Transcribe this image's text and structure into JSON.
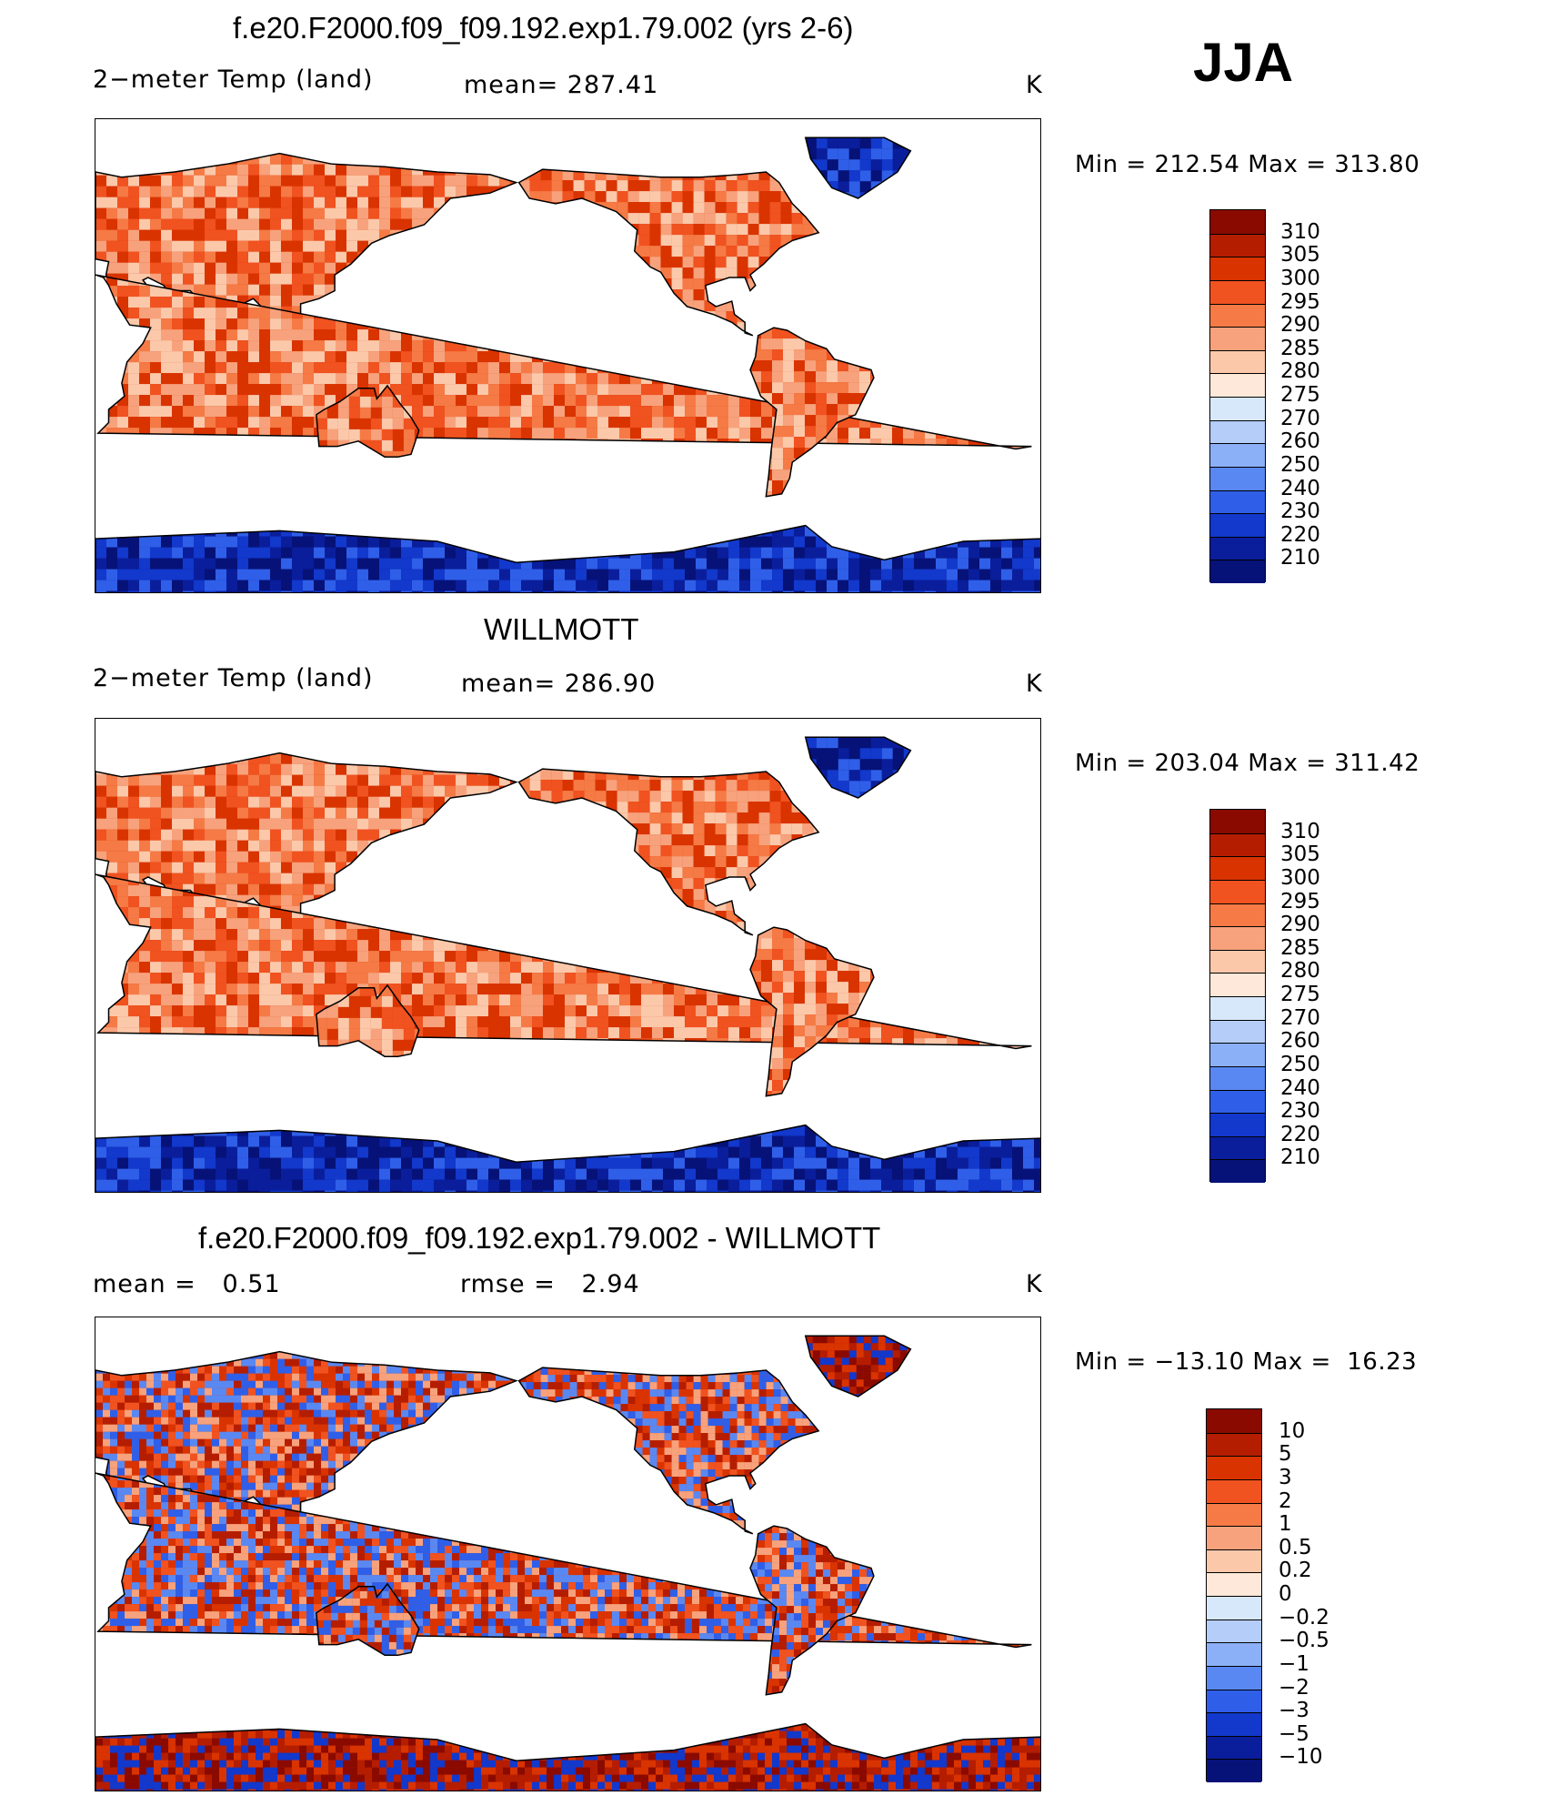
{
  "season": "JJA",
  "panels": [
    {
      "title": "f.e20.F2000.f09_f09.192.exp1.79.002 (yrs 2-6)",
      "left_text": "2−meter Temp (land)",
      "mid_text": "mean= 287.41",
      "units": "K",
      "minmax": "Min = 212.54 Max = 313.80",
      "colorbar": {
        "labels": [
          "310",
          "305",
          "300",
          "295",
          "290",
          "285",
          "280",
          "275",
          "270",
          "260",
          "250",
          "240",
          "230",
          "220",
          "210"
        ],
        "colors": [
          "#8a0a00",
          "#b51d00",
          "#d93300",
          "#f05220",
          "#f57a45",
          "#f7a27c",
          "#fbc8aa",
          "#fde8da",
          "#d8e8fb",
          "#b4cdf9",
          "#8cb0f7",
          "#5a88f2",
          "#2f5fe8",
          "#1238cc",
          "#0a1e9c",
          "#061278"
        ]
      },
      "land_palette": [
        "#d93300",
        "#f05220",
        "#f57a45",
        "#f7a27c",
        "#fbc8aa"
      ],
      "ice_palette": [
        "#061278",
        "#0a1e9c",
        "#1238cc",
        "#2f5fe8"
      ]
    },
    {
      "title": "WILLMOTT",
      "left_text": "2−meter Temp (land)",
      "mid_text": "mean= 286.90",
      "units": "K",
      "minmax": "Min = 203.04 Max = 311.42",
      "colorbar": {
        "labels": [
          "310",
          "305",
          "300",
          "295",
          "290",
          "285",
          "280",
          "275",
          "270",
          "260",
          "250",
          "240",
          "230",
          "220",
          "210"
        ],
        "colors": [
          "#8a0a00",
          "#b51d00",
          "#d93300",
          "#f05220",
          "#f57a45",
          "#f7a27c",
          "#fbc8aa",
          "#fde8da",
          "#d8e8fb",
          "#b4cdf9",
          "#8cb0f7",
          "#5a88f2",
          "#2f5fe8",
          "#1238cc",
          "#0a1e9c",
          "#061278"
        ]
      },
      "land_palette": [
        "#d93300",
        "#f05220",
        "#f57a45",
        "#f7a27c",
        "#fbc8aa"
      ],
      "ice_palette": [
        "#061278",
        "#0a1e9c",
        "#1238cc",
        "#2f5fe8"
      ]
    },
    {
      "title": "f.e20.F2000.f09_f09.192.exp1.79.002 - WILLMOTT",
      "left_text": "mean =   0.51",
      "mid_text": "rmse =   2.94",
      "units": "K",
      "minmax": "Min = −13.10 Max =  16.23",
      "colorbar": {
        "labels": [
          "10",
          "5",
          "3",
          "2",
          "1",
          "0.5",
          "0.2",
          "0",
          "−0.2",
          "−0.5",
          "−1",
          "−2",
          "−3",
          "−5",
          "−10"
        ],
        "colors": [
          "#8a0a00",
          "#b51d00",
          "#d93300",
          "#f05220",
          "#f57a45",
          "#f7a27c",
          "#fbc8aa",
          "#fde8da",
          "#d8e8fb",
          "#b4cdf9",
          "#8cb0f7",
          "#5a88f2",
          "#2f5fe8",
          "#1238cc",
          "#0a1e9c",
          "#061278"
        ]
      },
      "land_palette": [
        "#d93300",
        "#f05220",
        "#2f5fe8",
        "#5a88f2",
        "#f7a27c",
        "#b51d00"
      ],
      "ice_palette": [
        "#b51d00",
        "#d93300",
        "#1238cc",
        "#8a0a00"
      ]
    }
  ]
}
